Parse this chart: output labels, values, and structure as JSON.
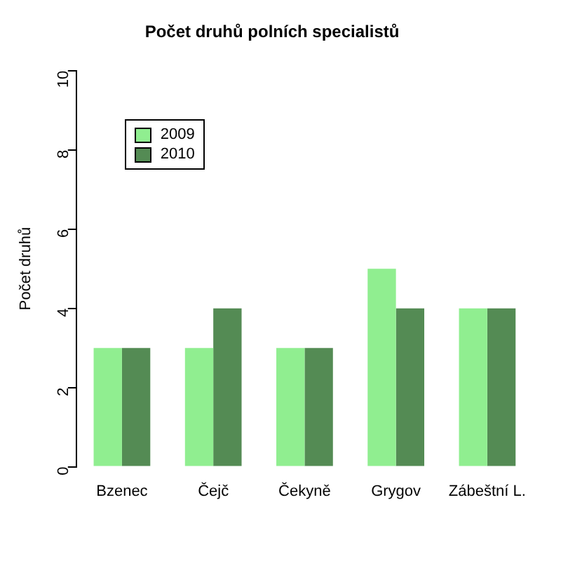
{
  "chart_data": {
    "type": "bar",
    "title": "Počet druhů polních specialistů",
    "ylabel": "Počet druhů",
    "categories": [
      "Bzenec",
      "Čejč",
      "Čekyně",
      "Grygov",
      "Zábeštní L."
    ],
    "series": [
      {
        "name": "2009",
        "color": "#90ee90",
        "values": [
          3,
          3,
          3,
          5,
          4
        ]
      },
      {
        "name": "2010",
        "color": "#548b54",
        "values": [
          3,
          4,
          3,
          4,
          4
        ]
      }
    ],
    "ylim": [
      0,
      10
    ],
    "yticks": [
      0,
      2,
      4,
      6,
      8,
      10
    ],
    "grid": false,
    "legend": "top left"
  }
}
